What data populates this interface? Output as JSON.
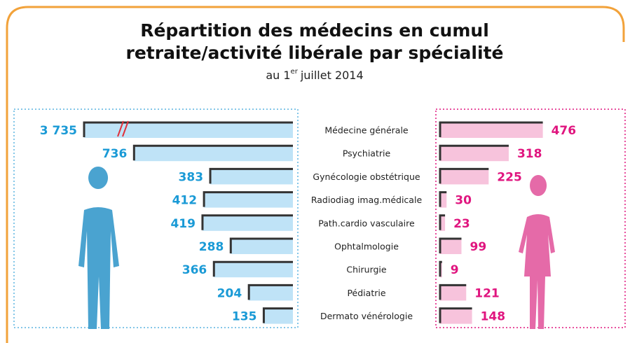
{
  "chart_data": {
    "type": "butterfly",
    "title": [
      "Répartition des médecins en cumul",
      "retraite/activité libérale par spécialité"
    ],
    "subtitle": {
      "prefix": "au 1",
      "sup": "er",
      "suffix": "juillet 2014"
    },
    "categories": [
      "Médecine générale",
      "Psychiatrie",
      "Gynécologie obstétrique",
      "Radiodiag imag.médicale",
      "Path.cardio vasculaire",
      "Ophtalmologie",
      "Chirurgie",
      "Pédiatrie",
      "Dermato vénérologie"
    ],
    "series": [
      {
        "color": "#bfe3f7",
        "values": [
          3735,
          736,
          383,
          412,
          419,
          288,
          366,
          204,
          135
        ],
        "value_labels": [
          "3 735",
          "736",
          "383",
          "412",
          "419",
          "288",
          "366",
          "204",
          "135"
        ]
      },
      {
        "color": "#f7c3dc",
        "values": [
          476,
          318,
          225,
          30,
          23,
          99,
          9,
          121,
          148
        ]
      }
    ]
  }
}
